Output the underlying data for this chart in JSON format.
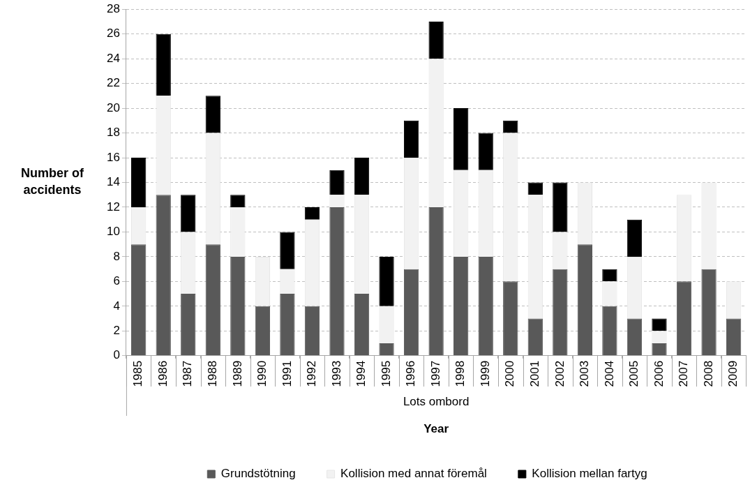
{
  "chart_data": {
    "type": "bar",
    "stacked": true,
    "ylabel": "Number of accidents",
    "xlabel": "Year",
    "annotations": [
      "Lots ombord"
    ],
    "categories": [
      "1985",
      "1986",
      "1987",
      "1988",
      "1989",
      "1990",
      "1991",
      "1992",
      "1993",
      "1994",
      "1995",
      "1996",
      "1997",
      "1998",
      "1999",
      "2000",
      "2001",
      "2002",
      "2003",
      "2004",
      "2005",
      "2006",
      "2007",
      "2008",
      "2009"
    ],
    "series": [
      {
        "name": "Grundstötning",
        "color": "#595959",
        "values": [
          9,
          13,
          5,
          9,
          8,
          4,
          5,
          4,
          12,
          5,
          1,
          7,
          12,
          8,
          8,
          6,
          3,
          7,
          9,
          4,
          3,
          1,
          6,
          7,
          3
        ]
      },
      {
        "name": "Kollision med annat föremål",
        "color": "#f2f2f2",
        "values": [
          3,
          8,
          5,
          9,
          4,
          4,
          2,
          7,
          1,
          8,
          3,
          9,
          12,
          7,
          7,
          12,
          10,
          3,
          5,
          2,
          5,
          1,
          7,
          7,
          3
        ]
      },
      {
        "name": "Kollision mellan fartyg",
        "color": "#000000",
        "values": [
          4,
          5,
          3,
          3,
          1,
          0,
          3,
          1,
          2,
          3,
          4,
          3,
          3,
          5,
          3,
          1,
          1,
          4,
          0,
          1,
          3,
          1,
          0,
          0,
          0
        ]
      }
    ],
    "ylim": [
      0,
      28
    ],
    "yticks": [
      0,
      2,
      4,
      6,
      8,
      10,
      12,
      14,
      16,
      18,
      20,
      22,
      24,
      26,
      28
    ],
    "grid": "y",
    "legend": "bottom"
  }
}
